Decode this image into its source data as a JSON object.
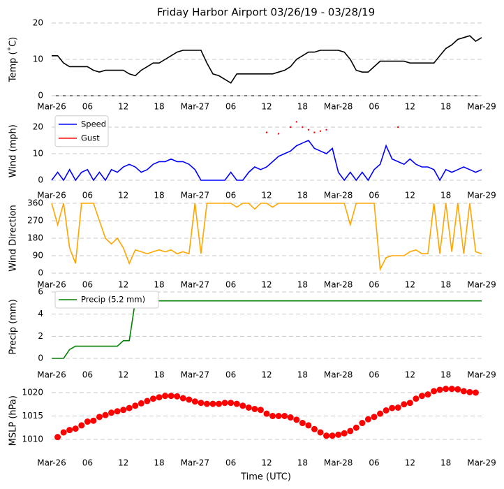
{
  "title": "Friday Harbor Airport 03/26/19 - 03/28/19",
  "xlabel": "Time (UTC)",
  "chart_data": [
    {
      "type": "line",
      "ylabel": "Temp (˚C)",
      "xlim": [
        0,
        72
      ],
      "ylim": [
        0,
        20
      ],
      "yticks": [
        0,
        10,
        20
      ],
      "grid": true,
      "xticks": [
        {
          "value": 0,
          "label": "Mar-26"
        },
        {
          "value": 6,
          "label": "06"
        },
        {
          "value": 12,
          "label": "12"
        },
        {
          "value": 18,
          "label": "18"
        },
        {
          "value": 24,
          "label": "Mar-27"
        },
        {
          "value": 30,
          "label": "06"
        },
        {
          "value": 36,
          "label": "12"
        },
        {
          "value": 42,
          "label": "18"
        },
        {
          "value": 48,
          "label": "Mar-28"
        },
        {
          "value": 54,
          "label": "06"
        },
        {
          "value": 60,
          "label": "12"
        },
        {
          "value": 66,
          "label": "18"
        },
        {
          "value": 72,
          "label": "Mar-29"
        }
      ],
      "x": [
        0,
        1,
        2,
        3,
        4,
        5,
        6,
        7,
        8,
        9,
        10,
        11,
        12,
        13,
        14,
        15,
        16,
        17,
        18,
        19,
        20,
        21,
        22,
        23,
        24,
        25,
        26,
        27,
        28,
        29,
        30,
        31,
        32,
        33,
        34,
        35,
        36,
        37,
        38,
        39,
        40,
        41,
        42,
        43,
        44,
        45,
        46,
        47,
        48,
        49,
        50,
        51,
        52,
        53,
        54,
        55,
        56,
        57,
        58,
        59,
        60,
        61,
        62,
        63,
        64,
        65,
        66,
        67,
        68,
        69,
        70,
        71,
        72
      ],
      "series": [
        {
          "color": "#000000",
          "values": [
            11,
            11,
            9,
            8,
            8,
            8,
            8,
            7,
            6.5,
            7,
            7,
            7,
            7,
            6,
            5.5,
            7,
            8,
            9,
            9,
            10,
            11,
            12,
            12.5,
            12.5,
            12.5,
            12.5,
            9,
            6,
            5.5,
            4.5,
            3.5,
            6,
            6,
            6,
            6,
            6,
            6,
            6,
            6.5,
            7,
            8,
            10,
            11,
            12,
            12,
            12.5,
            12.5,
            12.5,
            12.5,
            12,
            10,
            7,
            6.5,
            6.5,
            8,
            9.5,
            9.5,
            9.5,
            9.5,
            9.5,
            9,
            9,
            9,
            9,
            9,
            11,
            13,
            14,
            15.5,
            16,
            16.5,
            15,
            16
          ]
        }
      ]
    },
    {
      "type": "line",
      "ylabel": "Wind (mph)",
      "xlim": [
        0,
        72
      ],
      "ylim": [
        -2,
        24
      ],
      "yticks": [
        0,
        10,
        20
      ],
      "grid": true,
      "legend": "upper left",
      "xticks": [
        {
          "value": 0,
          "label": "Mar-26"
        },
        {
          "value": 6,
          "label": "06"
        },
        {
          "value": 12,
          "label": "12"
        },
        {
          "value": 18,
          "label": "18"
        },
        {
          "value": 24,
          "label": "Mar-27"
        },
        {
          "value": 30,
          "label": "06"
        },
        {
          "value": 36,
          "label": "12"
        },
        {
          "value": 42,
          "label": "18"
        },
        {
          "value": 48,
          "label": "Mar-28"
        },
        {
          "value": 54,
          "label": "06"
        },
        {
          "value": 60,
          "label": "12"
        },
        {
          "value": 66,
          "label": "18"
        },
        {
          "value": 72,
          "label": "Mar-29"
        }
      ],
      "x": [
        0,
        1,
        2,
        3,
        4,
        5,
        6,
        7,
        8,
        9,
        10,
        11,
        12,
        13,
        14,
        15,
        16,
        17,
        18,
        19,
        20,
        21,
        22,
        23,
        24,
        25,
        26,
        27,
        28,
        29,
        30,
        31,
        32,
        33,
        34,
        35,
        36,
        37,
        38,
        39,
        40,
        41,
        42,
        43,
        44,
        45,
        46,
        47,
        48,
        49,
        50,
        51,
        52,
        53,
        54,
        55,
        56,
        57,
        58,
        59,
        60,
        61,
        62,
        63,
        64,
        65,
        66,
        67,
        68,
        69,
        70,
        71,
        72
      ],
      "series": [
        {
          "name": "Speed",
          "color": "#0000ff",
          "values": [
            0,
            3,
            0,
            4,
            0,
            3,
            4,
            0,
            3,
            0,
            4,
            3,
            5,
            6,
            5,
            3,
            4,
            6,
            7,
            7,
            8,
            7,
            7,
            6,
            4,
            0,
            0,
            0,
            0,
            0,
            3,
            0,
            0,
            3,
            5,
            4,
            5,
            7,
            9,
            10,
            11,
            13,
            14,
            15,
            12,
            11,
            10,
            12,
            3,
            0,
            3,
            0,
            3,
            0,
            4,
            6,
            13,
            8,
            7,
            6,
            8,
            6,
            5,
            5,
            4,
            0,
            4,
            3,
            4,
            5,
            4,
            3,
            4
          ]
        },
        {
          "name": "Gust",
          "color": "#ff0000",
          "style": "dots",
          "values": [
            null,
            null,
            null,
            null,
            null,
            null,
            null,
            null,
            null,
            null,
            null,
            null,
            null,
            null,
            null,
            null,
            null,
            null,
            null,
            null,
            null,
            null,
            null,
            null,
            null,
            null,
            null,
            null,
            null,
            null,
            null,
            null,
            null,
            null,
            null,
            null,
            18,
            null,
            17.5,
            null,
            20,
            22,
            20,
            19,
            18,
            18.5,
            19,
            null,
            null,
            null,
            null,
            null,
            null,
            null,
            null,
            null,
            null,
            null,
            20,
            null,
            null,
            null,
            null,
            null,
            null,
            null,
            null,
            null,
            null,
            null,
            null,
            null,
            null
          ]
        }
      ]
    },
    {
      "type": "line",
      "ylabel": "Wind Direction",
      "xlim": [
        0,
        72
      ],
      "ylim": [
        0,
        360
      ],
      "yticks": [
        0,
        90,
        180,
        270,
        360
      ],
      "grid": true,
      "xticks": [
        {
          "value": 0,
          "label": "Mar-26"
        },
        {
          "value": 6,
          "label": "06"
        },
        {
          "value": 12,
          "label": "12"
        },
        {
          "value": 18,
          "label": "18"
        },
        {
          "value": 24,
          "label": "Mar-27"
        },
        {
          "value": 30,
          "label": "06"
        },
        {
          "value": 36,
          "label": "12"
        },
        {
          "value": 42,
          "label": "18"
        },
        {
          "value": 48,
          "label": "Mar-28"
        },
        {
          "value": 54,
          "label": "06"
        },
        {
          "value": 60,
          "label": "12"
        },
        {
          "value": 66,
          "label": "18"
        },
        {
          "value": 72,
          "label": "Mar-29"
        }
      ],
      "x": [
        0,
        1,
        2,
        3,
        4,
        5,
        6,
        7,
        8,
        9,
        10,
        11,
        12,
        13,
        14,
        15,
        16,
        17,
        18,
        19,
        20,
        21,
        22,
        23,
        24,
        25,
        26,
        27,
        28,
        29,
        30,
        31,
        32,
        33,
        34,
        35,
        36,
        37,
        38,
        39,
        40,
        41,
        42,
        43,
        44,
        45,
        46,
        47,
        48,
        49,
        50,
        51,
        52,
        53,
        54,
        55,
        56,
        57,
        58,
        59,
        60,
        61,
        62,
        63,
        64,
        65,
        66,
        67,
        68,
        69,
        70,
        71,
        72
      ],
      "series": [
        {
          "color": "#ffa500",
          "values": [
            360,
            250,
            360,
            130,
            50,
            360,
            360,
            360,
            270,
            180,
            150,
            180,
            130,
            50,
            120,
            110,
            100,
            110,
            120,
            110,
            120,
            100,
            110,
            100,
            360,
            100,
            360,
            360,
            360,
            360,
            360,
            340,
            360,
            360,
            330,
            360,
            360,
            340,
            360,
            360,
            360,
            360,
            360,
            360,
            360,
            360,
            360,
            360,
            360,
            360,
            250,
            360,
            360,
            360,
            360,
            20,
            80,
            90,
            90,
            90,
            110,
            120,
            100,
            100,
            360,
            100,
            360,
            110,
            360,
            100,
            360,
            110,
            100
          ]
        }
      ]
    },
    {
      "type": "line",
      "ylabel": "Precip (mm)",
      "xlim": [
        0,
        72
      ],
      "ylim": [
        -0.3,
        6
      ],
      "yticks": [
        0,
        2,
        4,
        6
      ],
      "grid": true,
      "legend": "upper left",
      "xticks": [
        {
          "value": 0,
          "label": "Mar-26"
        },
        {
          "value": 6,
          "label": "06"
        },
        {
          "value": 12,
          "label": "12"
        },
        {
          "value": 18,
          "label": "18"
        },
        {
          "value": 24,
          "label": "Mar-27"
        },
        {
          "value": 30,
          "label": "06"
        },
        {
          "value": 36,
          "label": "12"
        },
        {
          "value": 42,
          "label": "18"
        },
        {
          "value": 48,
          "label": "Mar-28"
        },
        {
          "value": 54,
          "label": "06"
        },
        {
          "value": 60,
          "label": "12"
        },
        {
          "value": 66,
          "label": "18"
        },
        {
          "value": 72,
          "label": "Mar-29"
        }
      ],
      "x": [
        0,
        1,
        2,
        3,
        4,
        5,
        6,
        7,
        8,
        9,
        10,
        11,
        12,
        13,
        14,
        15,
        16,
        17,
        18,
        19,
        20,
        21,
        22,
        23,
        24,
        25,
        26,
        27,
        28,
        29,
        30,
        31,
        32,
        33,
        34,
        35,
        36,
        37,
        38,
        39,
        40,
        41,
        42,
        43,
        44,
        45,
        46,
        47,
        48,
        49,
        50,
        51,
        52,
        53,
        54,
        55,
        56,
        57,
        58,
        59,
        60,
        61,
        62,
        63,
        64,
        65,
        66,
        67,
        68,
        69,
        70,
        71,
        72
      ],
      "series": [
        {
          "name": "Precip (5.2 mm)",
          "color": "#008000",
          "values": [
            0,
            0,
            0,
            0.8,
            1.1,
            1.1,
            1.1,
            1.1,
            1.1,
            1.1,
            1.1,
            1.1,
            1.6,
            1.6,
            5.2,
            5.2,
            5.2,
            5.2,
            5.2,
            5.2,
            5.2,
            5.2,
            5.2,
            5.2,
            5.2,
            5.2,
            5.2,
            5.2,
            5.2,
            5.2,
            5.2,
            5.2,
            5.2,
            5.2,
            5.2,
            5.2,
            5.2,
            5.2,
            5.2,
            5.2,
            5.2,
            5.2,
            5.2,
            5.2,
            5.2,
            5.2,
            5.2,
            5.2,
            5.2,
            5.2,
            5.2,
            5.2,
            5.2,
            5.2,
            5.2,
            5.2,
            5.2,
            5.2,
            5.2,
            5.2,
            5.2,
            5.2,
            5.2,
            5.2,
            5.2,
            5.2,
            5.2,
            5.2,
            5.2,
            5.2,
            5.2,
            5.2,
            5.2
          ]
        }
      ]
    },
    {
      "type": "scatter",
      "ylabel": "MSLP (hPa)",
      "xlim": [
        0,
        72
      ],
      "ylim": [
        1006,
        1022
      ],
      "yticks": [
        1010,
        1015,
        1020
      ],
      "grid": true,
      "xticks": [
        {
          "value": 0,
          "label": "Mar-26"
        },
        {
          "value": 6,
          "label": "06"
        },
        {
          "value": 12,
          "label": "12"
        },
        {
          "value": 18,
          "label": "18"
        },
        {
          "value": 24,
          "label": "Mar-27"
        },
        {
          "value": 30,
          "label": "06"
        },
        {
          "value": 36,
          "label": "12"
        },
        {
          "value": 42,
          "label": "18"
        },
        {
          "value": 48,
          "label": "Mar-28"
        },
        {
          "value": 54,
          "label": "06"
        },
        {
          "value": 60,
          "label": "12"
        },
        {
          "value": 66,
          "label": "18"
        },
        {
          "value": 72,
          "label": "Mar-29"
        }
      ],
      "x": [
        1,
        2,
        3,
        4,
        5,
        6,
        7,
        8,
        9,
        10,
        11,
        12,
        13,
        14,
        15,
        16,
        17,
        18,
        19,
        20,
        21,
        22,
        23,
        24,
        25,
        26,
        27,
        28,
        29,
        30,
        31,
        32,
        33,
        34,
        35,
        36,
        37,
        38,
        39,
        40,
        41,
        42,
        43,
        44,
        45,
        46,
        47,
        48,
        49,
        50,
        51,
        52,
        53,
        54,
        55,
        56,
        57,
        58,
        59,
        60,
        61,
        62,
        63,
        64,
        65,
        66,
        67,
        68,
        69,
        70,
        71
      ],
      "series": [
        {
          "color": "#ff0000",
          "values": [
            1010.5,
            1011.5,
            1012,
            1012.3,
            1013,
            1013.8,
            1014,
            1014.8,
            1015.2,
            1015.7,
            1016,
            1016.3,
            1016.7,
            1017.2,
            1017.7,
            1018.2,
            1018.7,
            1019,
            1019.3,
            1019.3,
            1019.2,
            1018.8,
            1018.5,
            1018.1,
            1017.8,
            1017.6,
            1017.6,
            1017.6,
            1017.8,
            1017.8,
            1017.6,
            1017.2,
            1016.8,
            1016.5,
            1016.3,
            1015.5,
            1015,
            1015,
            1015,
            1014.7,
            1014.2,
            1013.5,
            1013,
            1012.2,
            1011.5,
            1010.8,
            1010.8,
            1011,
            1011.3,
            1011.8,
            1012.5,
            1013.5,
            1014.3,
            1014.8,
            1015.5,
            1016.2,
            1016.7,
            1016.8,
            1017.5,
            1017.8,
            1018.7,
            1019.3,
            1019.6,
            1020.3,
            1020.6,
            1020.8,
            1020.8,
            1020.7,
            1020.3,
            1020.1,
            1020
          ]
        }
      ]
    }
  ]
}
